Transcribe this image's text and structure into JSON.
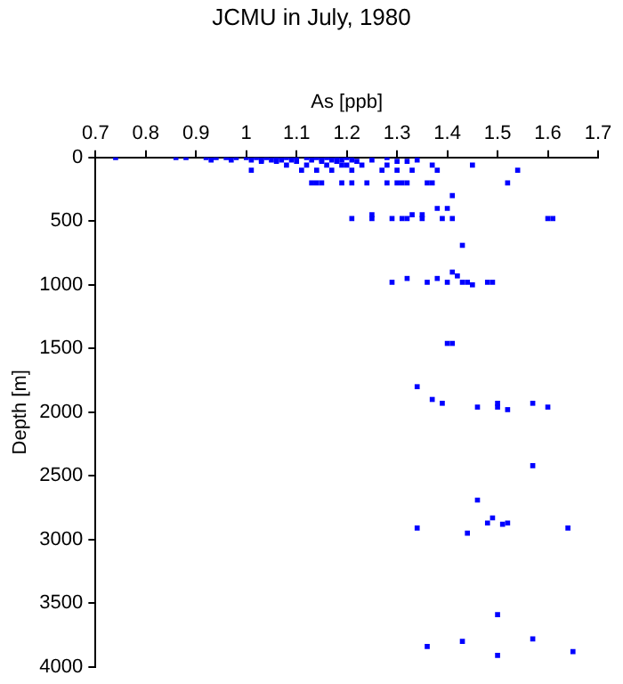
{
  "chart_data": {
    "type": "scatter",
    "title": "JCMU in July, 1980",
    "xlabel": "As [ppb]",
    "ylabel": "Depth [m]",
    "xlim": [
      0.7,
      1.7
    ],
    "xticks": [
      0.7,
      0.8,
      0.9,
      1,
      1.1,
      1.2,
      1.3,
      1.4,
      1.5,
      1.6,
      1.7
    ],
    "ylim": [
      4000,
      0
    ],
    "yticks": [
      0,
      500,
      1000,
      1500,
      2000,
      2500,
      3000,
      3500,
      4000
    ],
    "grid": false,
    "legend": false,
    "marker": "square",
    "series": [
      {
        "color": "#0000ff",
        "x": [
          0.74,
          0.86,
          0.88,
          0.92,
          0.94,
          0.96,
          0.98,
          1.0,
          1.02,
          1.04,
          1.06,
          1.08,
          1.1,
          1.12,
          1.14,
          1.16,
          1.18,
          1.2,
          1.28,
          0.93,
          0.97,
          1.01,
          1.03,
          1.05,
          1.07,
          1.09,
          1.13,
          1.15,
          1.17,
          1.19,
          1.21,
          1.25,
          1.34,
          1.03,
          1.06,
          1.1,
          1.15,
          1.18,
          1.22,
          1.3,
          1.32,
          1.08,
          1.12,
          1.16,
          1.19,
          1.2,
          1.23,
          1.28,
          1.37,
          1.45,
          1.01,
          1.11,
          1.14,
          1.17,
          1.21,
          1.27,
          1.3,
          1.33,
          1.38,
          1.54,
          1.13,
          1.14,
          1.15,
          1.19,
          1.21,
          1.24,
          1.28,
          1.3,
          1.31,
          1.32,
          1.36,
          1.37,
          1.52,
          1.41,
          1.38,
          1.4,
          1.25,
          1.33,
          1.35,
          1.21,
          1.25,
          1.29,
          1.31,
          1.32,
          1.35,
          1.39,
          1.41,
          1.6,
          1.61,
          1.43,
          1.41,
          1.42,
          1.32,
          1.38,
          1.29,
          1.36,
          1.4,
          1.43,
          1.44,
          1.48,
          1.49,
          1.45,
          1.4,
          1.41,
          1.34,
          1.37,
          1.39,
          1.5,
          1.57,
          1.46,
          1.5,
          1.6,
          1.52,
          1.57,
          1.46,
          1.49,
          1.48,
          1.52,
          1.51,
          1.34,
          1.64,
          1.44,
          1.5,
          1.57,
          1.43,
          1.36,
          1.65,
          1.5
        ],
        "values": [
          0,
          0,
          0,
          0,
          0,
          0,
          0,
          0,
          0,
          0,
          0,
          0,
          0,
          0,
          0,
          0,
          0,
          0,
          0,
          20,
          20,
          20,
          20,
          20,
          20,
          20,
          20,
          20,
          20,
          20,
          20,
          20,
          20,
          30,
          30,
          30,
          30,
          30,
          30,
          30,
          30,
          60,
          60,
          60,
          60,
          60,
          60,
          60,
          60,
          60,
          100,
          100,
          100,
          100,
          100,
          100,
          100,
          100,
          100,
          100,
          200,
          200,
          200,
          200,
          200,
          200,
          200,
          200,
          200,
          200,
          200,
          200,
          200,
          300,
          400,
          400,
          450,
          450,
          450,
          480,
          480,
          480,
          480,
          480,
          480,
          480,
          480,
          480,
          480,
          690,
          900,
          930,
          950,
          950,
          980,
          980,
          980,
          980,
          980,
          980,
          980,
          1000,
          1460,
          1460,
          1800,
          1900,
          1930,
          1930,
          1930,
          1960,
          1960,
          1960,
          1980,
          2420,
          2690,
          2830,
          2870,
          2870,
          2880,
          2910,
          2910,
          2950,
          3590,
          3780,
          3800,
          3840,
          3880,
          3910
        ]
      }
    ]
  }
}
